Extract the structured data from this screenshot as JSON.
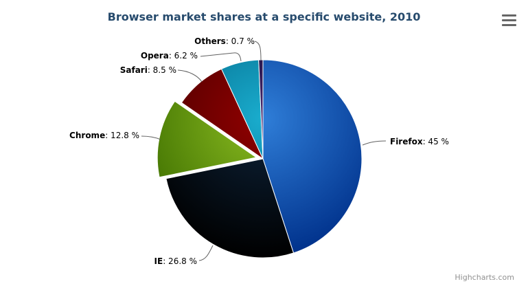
{
  "header": {
    "title": "Browser market shares at a specific website, 2010"
  },
  "credits": {
    "label": "Highcharts.com"
  },
  "icons": {
    "context_menu": "hamburger-icon"
  },
  "colors": {
    "title": "#274b6d",
    "label_text": "#000000",
    "connector": "#606060",
    "slice_border": "#ffffff",
    "credits_text": "#909090"
  },
  "chart_data": {
    "type": "pie",
    "title": "Browser market shares at a specific website, 2010",
    "unit": "%",
    "legend": "none",
    "start_angle_deg": 0,
    "series": [
      {
        "name": "Firefox",
        "value": 45,
        "label_rest": ": 45 %",
        "color": "#2f7ed8",
        "sliced": false
      },
      {
        "name": "IE",
        "value": 26.8,
        "label_rest": ": 26.8 %",
        "color": "#0d233a",
        "sliced": false
      },
      {
        "name": "Chrome",
        "value": 12.8,
        "label_rest": ": 12.8 %",
        "color": "#8bbc21",
        "sliced": true
      },
      {
        "name": "Safari",
        "value": 8.5,
        "label_rest": ": 8.5 %",
        "color": "#910000",
        "sliced": false
      },
      {
        "name": "Opera",
        "value": 6.2,
        "label_rest": ": 6.2 %",
        "color": "#1aadce",
        "sliced": false
      },
      {
        "name": "Others",
        "value": 0.7,
        "label_rest": ": 0.7 %",
        "color": "#492970",
        "sliced": false
      }
    ]
  }
}
